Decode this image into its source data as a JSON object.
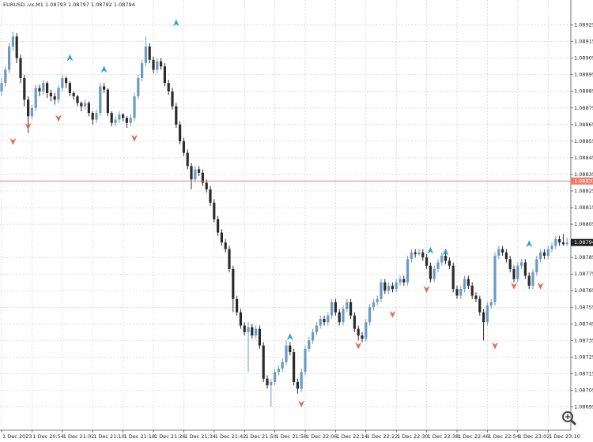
{
  "chart_data": {
    "type": "candlestick",
    "symbol": "EURUSD.,vx,M1",
    "up_color": "#6b9ac4",
    "down_color": "#2b2b2b",
    "grid": true,
    "ylim": [
      1.08681,
      1.0894
    ],
    "yticks": [
      1.08925,
      1.08915,
      1.08905,
      1.08895,
      1.08885,
      1.08875,
      1.08865,
      1.08855,
      1.08845,
      1.08835,
      1.08825,
      1.08815,
      1.08805,
      1.08785,
      1.08775,
      1.08765,
      1.08755,
      1.08745,
      1.08735,
      1.08725,
      1.08715,
      1.08705,
      1.08695
    ],
    "price_line": {
      "value": 1.08831,
      "color": "#f07c68"
    },
    "last_price": 1.08794,
    "categories": [
      "1 Dec 2023",
      null,
      null,
      null,
      null,
      null,
      null,
      null,
      "1 Dec 20:54",
      null,
      null,
      null,
      null,
      null,
      null,
      null,
      "1 Dec 21:02",
      null,
      null,
      null,
      null,
      null,
      null,
      null,
      "1 Dec 21:10",
      null,
      null,
      null,
      null,
      null,
      null,
      null,
      "1 Dec 21:18",
      null,
      null,
      null,
      null,
      null,
      null,
      null,
      "1 Dec 21:26",
      null,
      null,
      null,
      null,
      null,
      null,
      null,
      "1 Dec 21:34",
      null,
      null,
      null,
      null,
      null,
      null,
      null,
      "1 Dec 21:42",
      null,
      null,
      null,
      null,
      null,
      null,
      null,
      "1 Dec 21:50",
      null,
      null,
      null,
      null,
      null,
      null,
      null,
      "1 Dec 21:58",
      null,
      null,
      null,
      null,
      null,
      null,
      null,
      "1 Dec 22:06",
      null,
      null,
      null,
      null,
      null,
      null,
      null,
      "1 Dec 22:14",
      null,
      null,
      null,
      null,
      null,
      null,
      null,
      "1 Dec 22:22",
      null,
      null,
      null,
      null,
      null,
      null,
      null,
      "1 Dec 22:30",
      null,
      null,
      null,
      null,
      null,
      null,
      null,
      "1 Dec 22:38",
      null,
      null,
      null,
      null,
      null,
      null,
      null,
      "1 Dec 22:46",
      null,
      null,
      null,
      null,
      null,
      null,
      null,
      "1 Dec 22:54",
      null,
      null,
      null,
      null,
      null,
      null,
      null,
      "1 Dec 23:02",
      null,
      null,
      null,
      null,
      null,
      null,
      null,
      "1 Dec 23:10",
      null,
      null,
      null,
      null,
      null
    ],
    "candles": [
      [
        1.08885,
        1.08893,
        1.08882,
        1.0889
      ],
      [
        1.0889,
        1.089,
        1.08888,
        1.08898
      ],
      [
        1.08898,
        1.08914,
        1.08896,
        1.08912
      ],
      [
        1.08912,
        1.08921,
        1.08909,
        1.08918
      ],
      [
        1.08918,
        1.0892,
        1.08902,
        1.08905
      ],
      [
        1.08905,
        1.08907,
        1.0889,
        1.08893
      ],
      [
        1.08893,
        1.08895,
        1.08876,
        1.0888
      ],
      [
        1.0888,
        1.08882,
        1.0886,
        1.0887
      ],
      [
        1.0887,
        1.08877,
        1.08868,
        1.08875
      ],
      [
        1.08875,
        1.08889,
        1.08873,
        1.08887
      ],
      [
        1.08887,
        1.08889,
        1.08882,
        1.08885
      ],
      [
        1.08885,
        1.08892,
        1.08883,
        1.0889
      ],
      [
        1.0889,
        1.08891,
        1.08881,
        1.08884
      ],
      [
        1.08884,
        1.08886,
        1.08879,
        1.08882
      ],
      [
        1.08882,
        1.08884,
        1.08877,
        1.0888
      ],
      [
        1.0888,
        1.08889,
        1.08878,
        1.08887
      ],
      [
        1.08887,
        1.08895,
        1.08885,
        1.08893
      ],
      [
        1.08893,
        1.08894,
        1.08887,
        1.0889
      ],
      [
        1.0889,
        1.08891,
        1.08882,
        1.08884
      ],
      [
        1.08884,
        1.08885,
        1.0888,
        1.08882
      ],
      [
        1.08882,
        1.08883,
        1.08876,
        1.08878
      ],
      [
        1.08878,
        1.08879,
        1.08873,
        1.08876
      ],
      [
        1.08876,
        1.0888,
        1.08874,
        1.08878
      ],
      [
        1.08878,
        1.08879,
        1.0887,
        1.08872
      ],
      [
        1.08872,
        1.08873,
        1.08865,
        1.08868
      ],
      [
        1.08868,
        1.08874,
        1.08866,
        1.08872
      ],
      [
        1.08872,
        1.0889,
        1.0887,
        1.08888
      ],
      [
        1.08888,
        1.0889,
        1.08884,
        1.08886
      ],
      [
        1.08886,
        1.08887,
        1.0887,
        1.08872
      ],
      [
        1.08872,
        1.08873,
        1.08864,
        1.08866
      ],
      [
        1.08866,
        1.0887,
        1.08864,
        1.08868
      ],
      [
        1.08868,
        1.08873,
        1.08866,
        1.08871
      ],
      [
        1.08871,
        1.08872,
        1.08867,
        1.08869
      ],
      [
        1.08869,
        1.0887,
        1.08863,
        1.08866
      ],
      [
        1.08866,
        1.08871,
        1.08864,
        1.08869
      ],
      [
        1.08869,
        1.08884,
        1.08867,
        1.08882
      ],
      [
        1.08882,
        1.08895,
        1.0888,
        1.08893
      ],
      [
        1.08893,
        1.08904,
        1.08891,
        1.08902
      ],
      [
        1.08902,
        1.08918,
        1.089,
        1.08912
      ],
      [
        1.08912,
        1.08914,
        1.08902,
        1.08904
      ],
      [
        1.08904,
        1.08906,
        1.08896,
        1.08898
      ],
      [
        1.08898,
        1.08905,
        1.08896,
        1.08903
      ],
      [
        1.08903,
        1.08905,
        1.08898,
        1.089
      ],
      [
        1.089,
        1.08902,
        1.08888,
        1.0889
      ],
      [
        1.0889,
        1.08892,
        1.08883,
        1.08885
      ],
      [
        1.08885,
        1.08887,
        1.08874,
        1.08876
      ],
      [
        1.08876,
        1.08878,
        1.08863,
        1.08865
      ],
      [
        1.08865,
        1.08867,
        1.08853,
        1.08855
      ],
      [
        1.08855,
        1.08857,
        1.08846,
        1.08848
      ],
      [
        1.08848,
        1.0885,
        1.08838,
        1.0884
      ],
      [
        1.0884,
        1.08842,
        1.08826,
        1.08832
      ],
      [
        1.08832,
        1.0884,
        1.0883,
        1.08838
      ],
      [
        1.08838,
        1.0884,
        1.08834,
        1.08836
      ],
      [
        1.08836,
        1.08838,
        1.08828,
        1.0883
      ],
      [
        1.0883,
        1.08832,
        1.08824,
        1.08826
      ],
      [
        1.08826,
        1.08828,
        1.08816,
        1.08818
      ],
      [
        1.08818,
        1.0882,
        1.08806,
        1.08808
      ],
      [
        1.08808,
        1.0881,
        1.08798,
        1.088
      ],
      [
        1.088,
        1.08802,
        1.08792,
        1.08794
      ],
      [
        1.08794,
        1.08796,
        1.08788,
        1.0879
      ],
      [
        1.0879,
        1.08792,
        1.08776,
        1.08778
      ],
      [
        1.08778,
        1.0878,
        1.08752,
        1.0876
      ],
      [
        1.0876,
        1.08762,
        1.0875,
        1.08752
      ],
      [
        1.08752,
        1.08754,
        1.08742,
        1.08744
      ],
      [
        1.08744,
        1.08746,
        1.08738,
        1.0874
      ],
      [
        1.0874,
        1.08746,
        1.08716,
        1.08743
      ],
      [
        1.08743,
        1.08745,
        1.08736,
        1.08738
      ],
      [
        1.08738,
        1.08744,
        1.08736,
        1.08742
      ],
      [
        1.08742,
        1.08744,
        1.0873,
        1.08732
      ],
      [
        1.08732,
        1.08734,
        1.0871,
        1.08712
      ],
      [
        1.08712,
        1.08714,
        1.08706,
        1.08708
      ],
      [
        1.08708,
        1.08712,
        1.08695,
        1.0871
      ],
      [
        1.0871,
        1.08718,
        1.08708,
        1.08716
      ],
      [
        1.08716,
        1.0872,
        1.08714,
        1.08718
      ],
      [
        1.08718,
        1.08724,
        1.08716,
        1.08722
      ],
      [
        1.08722,
        1.08735,
        1.0872,
        1.08732
      ],
      [
        1.08732,
        1.08734,
        1.08726,
        1.08728
      ],
      [
        1.08728,
        1.0873,
        1.08708,
        1.0871
      ],
      [
        1.0871,
        1.08712,
        1.08703,
        1.08706
      ],
      [
        1.08706,
        1.08718,
        1.08704,
        1.08716
      ],
      [
        1.08716,
        1.08732,
        1.08714,
        1.0873
      ],
      [
        1.0873,
        1.08737,
        1.08728,
        1.08735
      ],
      [
        1.08735,
        1.08742,
        1.08733,
        1.0874
      ],
      [
        1.0874,
        1.08746,
        1.08738,
        1.08744
      ],
      [
        1.08744,
        1.0875,
        1.08742,
        1.08748
      ],
      [
        1.08748,
        1.0875,
        1.08744,
        1.08746
      ],
      [
        1.08746,
        1.08752,
        1.08744,
        1.0875
      ],
      [
        1.0875,
        1.0876,
        1.08748,
        1.08758
      ],
      [
        1.08758,
        1.0876,
        1.0875,
        1.08752
      ],
      [
        1.08752,
        1.08754,
        1.08744,
        1.08746
      ],
      [
        1.08746,
        1.08756,
        1.08744,
        1.08754
      ],
      [
        1.08754,
        1.0876,
        1.08752,
        1.08758
      ],
      [
        1.08758,
        1.0876,
        1.08748,
        1.0875
      ],
      [
        1.0875,
        1.08752,
        1.0874,
        1.08742
      ],
      [
        1.08742,
        1.08744,
        1.08735,
        1.08738
      ],
      [
        1.08738,
        1.0874,
        1.08734,
        1.08736
      ],
      [
        1.08736,
        1.08748,
        1.08734,
        1.08746
      ],
      [
        1.08746,
        1.08757,
        1.08744,
        1.08755
      ],
      [
        1.08755,
        1.0876,
        1.08753,
        1.08758
      ],
      [
        1.08758,
        1.08762,
        1.08756,
        1.0876
      ],
      [
        1.0876,
        1.08772,
        1.08758,
        1.0877
      ],
      [
        1.0877,
        1.08772,
        1.08763,
        1.08765
      ],
      [
        1.08765,
        1.0877,
        1.08763,
        1.08768
      ],
      [
        1.08768,
        1.0877,
        1.08764,
        1.08766
      ],
      [
        1.08766,
        1.08772,
        1.08764,
        1.0877
      ],
      [
        1.0877,
        1.08774,
        1.08768,
        1.08772
      ],
      [
        1.08772,
        1.08774,
        1.08768,
        1.0877
      ],
      [
        1.0877,
        1.08786,
        1.08768,
        1.08784
      ],
      [
        1.08784,
        1.0879,
        1.08782,
        1.08788
      ],
      [
        1.08788,
        1.0879,
        1.08785,
        1.08787
      ],
      [
        1.08787,
        1.0879,
        1.08786,
        1.08788
      ],
      [
        1.08788,
        1.0879,
        1.08783,
        1.08785
      ],
      [
        1.08785,
        1.08787,
        1.08778,
        1.0878
      ],
      [
        1.0878,
        1.08782,
        1.0877,
        1.08772
      ],
      [
        1.08772,
        1.0878,
        1.0877,
        1.08778
      ],
      [
        1.08778,
        1.08784,
        1.08776,
        1.08782
      ],
      [
        1.08782,
        1.08788,
        1.0878,
        1.08786
      ],
      [
        1.08786,
        1.08788,
        1.08781,
        1.08783
      ],
      [
        1.08783,
        1.08785,
        1.08778,
        1.0878
      ],
      [
        1.0878,
        1.08782,
        1.08764,
        1.08766
      ],
      [
        1.08766,
        1.08768,
        1.0876,
        1.08762
      ],
      [
        1.08762,
        1.08768,
        1.0876,
        1.08766
      ],
      [
        1.08766,
        1.08774,
        1.08764,
        1.08772
      ],
      [
        1.08772,
        1.08774,
        1.08766,
        1.08768
      ],
      [
        1.08768,
        1.0877,
        1.0876,
        1.08762
      ],
      [
        1.08762,
        1.08764,
        1.08758,
        1.0876
      ],
      [
        1.0876,
        1.08762,
        1.0875,
        1.08752
      ],
      [
        1.08752,
        1.08754,
        1.08735,
        1.08746
      ],
      [
        1.08746,
        1.08758,
        1.08744,
        1.08756
      ],
      [
        1.08756,
        1.0876,
        1.08754,
        1.08758
      ],
      [
        1.08758,
        1.08788,
        1.08756,
        1.08786
      ],
      [
        1.08786,
        1.08792,
        1.08784,
        1.0879
      ],
      [
        1.0879,
        1.08792,
        1.08786,
        1.08788
      ],
      [
        1.08788,
        1.0879,
        1.08782,
        1.08784
      ],
      [
        1.08784,
        1.08786,
        1.08776,
        1.08778
      ],
      [
        1.08778,
        1.0878,
        1.0877,
        1.08772
      ],
      [
        1.08772,
        1.08782,
        1.0877,
        1.0878
      ],
      [
        1.0878,
        1.08784,
        1.08778,
        1.08782
      ],
      [
        1.08782,
        1.08784,
        1.08772,
        1.08774
      ],
      [
        1.08774,
        1.08776,
        1.08766,
        1.08768
      ],
      [
        1.08768,
        1.08778,
        1.08766,
        1.08776
      ],
      [
        1.08776,
        1.08786,
        1.08774,
        1.08784
      ],
      [
        1.08784,
        1.0879,
        1.08782,
        1.08788
      ],
      [
        1.08788,
        1.0879,
        1.08784,
        1.08786
      ],
      [
        1.08786,
        1.08792,
        1.08784,
        1.0879
      ],
      [
        1.0879,
        1.08794,
        1.08788,
        1.08792
      ],
      [
        1.08792,
        1.08798,
        1.0879,
        1.08796
      ],
      [
        1.08796,
        1.08798,
        1.08792,
        1.08794
      ],
      [
        1.08794,
        1.08799,
        1.08792,
        1.08793
      ],
      [
        1.08793,
        1.08797,
        1.08792,
        1.08794
      ]
    ],
    "buy_signals": {
      "color": "#1fa3dc",
      "index": [
        18,
        27,
        46,
        76,
        113,
        117,
        139
      ],
      "price": [
        1.08905,
        1.08898,
        1.08926,
        1.08737,
        1.08789,
        1.08788,
        1.08793
      ]
    },
    "sell_signals": {
      "color": "#e8694a",
      "index": [
        3,
        7,
        15,
        35,
        79,
        94,
        103,
        112,
        130,
        135,
        142
      ],
      "price": [
        1.08855,
        1.08864,
        1.08869,
        1.08857,
        1.08697,
        1.08732,
        1.08751,
        1.08766,
        1.08732,
        1.08768,
        1.08768
      ]
    }
  }
}
